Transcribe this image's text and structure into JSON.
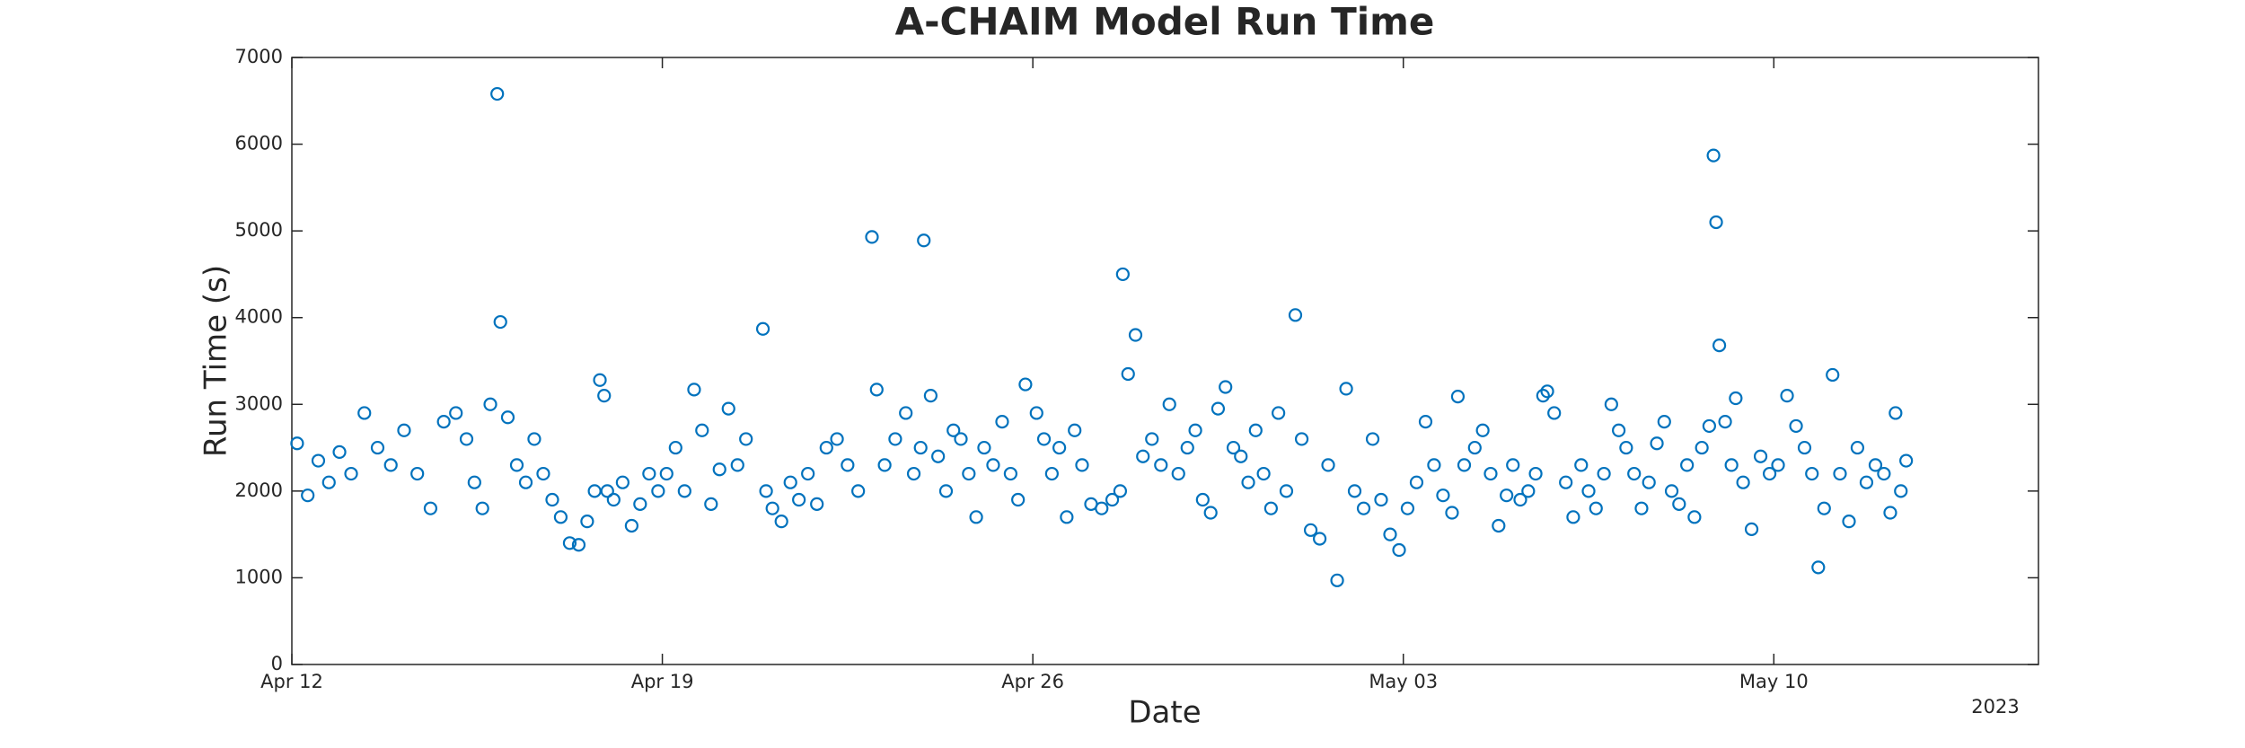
{
  "chart_data": {
    "type": "scatter",
    "title": "A-CHAIM Model Run Time",
    "xlabel": "Date",
    "ylabel": "Run Time (s)",
    "x_secondary_label": "2023",
    "color": "#0072bd",
    "grid": false,
    "xlim": [
      0,
      33
    ],
    "xticks": [
      {
        "value": 0,
        "label": "Apr 12"
      },
      {
        "value": 7,
        "label": "Apr 19"
      },
      {
        "value": 14,
        "label": "Apr 26"
      },
      {
        "value": 21,
        "label": "May 03"
      },
      {
        "value": 28,
        "label": "May 10"
      }
    ],
    "ylim": [
      0,
      7000
    ],
    "yticks": [
      0,
      1000,
      2000,
      3000,
      4000,
      5000,
      6000,
      7000
    ],
    "x": [
      0.1,
      0.3,
      0.5,
      0.7,
      0.9,
      1.12,
      1.37,
      1.62,
      1.87,
      2.12,
      2.37,
      2.62,
      2.87,
      3.1,
      3.3,
      3.45,
      3.6,
      3.75,
      3.88,
      3.94,
      4.08,
      4.25,
      4.42,
      4.58,
      4.75,
      4.92,
      5.08,
      5.25,
      5.42,
      5.58,
      5.72,
      5.82,
      5.9,
      5.96,
      6.08,
      6.25,
      6.42,
      6.58,
      6.75,
      6.92,
      7.08,
      7.25,
      7.42,
      7.6,
      7.75,
      7.92,
      8.08,
      8.25,
      8.42,
      8.58,
      8.9,
      8.96,
      9.08,
      9.25,
      9.42,
      9.58,
      9.75,
      9.92,
      10.1,
      10.3,
      10.5,
      10.7,
      10.96,
      11.05,
      11.2,
      11.4,
      11.6,
      11.75,
      11.88,
      11.94,
      12.07,
      12.21,
      12.36,
      12.5,
      12.64,
      12.79,
      12.93,
      13.08,
      13.25,
      13.42,
      13.58,
      13.72,
      13.86,
      14.07,
      14.21,
      14.36,
      14.5,
      14.64,
      14.79,
      14.93,
      15.1,
      15.3,
      15.5,
      15.65,
      15.7,
      15.8,
      15.94,
      16.08,
      16.25,
      16.42,
      16.58,
      16.75,
      16.92,
      17.07,
      17.21,
      17.36,
      17.5,
      17.64,
      17.79,
      17.93,
      18.07,
      18.21,
      18.36,
      18.5,
      18.64,
      18.79,
      18.96,
      19.08,
      19.25,
      19.42,
      19.58,
      19.75,
      19.92,
      20.08,
      20.25,
      20.42,
      20.58,
      20.75,
      20.92,
      21.08,
      21.25,
      21.42,
      21.58,
      21.75,
      21.92,
      22.03,
      22.15,
      22.35,
      22.5,
      22.65,
      22.8,
      22.95,
      23.07,
      23.21,
      23.36,
      23.5,
      23.64,
      23.72,
      23.85,
      24.07,
      24.21,
      24.36,
      24.5,
      24.64,
      24.79,
      24.93,
      25.07,
      25.21,
      25.36,
      25.5,
      25.64,
      25.79,
      25.93,
      26.07,
      26.21,
      26.36,
      26.5,
      26.64,
      26.78,
      26.86,
      26.91,
      26.97,
      27.08,
      27.2,
      27.28,
      27.42,
      27.58,
      27.75,
      27.92,
      28.08,
      28.25,
      28.42,
      28.58,
      28.72,
      28.84,
      28.95,
      29.11,
      29.25,
      29.42,
      29.58,
      29.75,
      29.92,
      30.08,
      30.2,
      30.3,
      30.4,
      30.5
    ],
    "values": [
      2550,
      1950,
      2350,
      2100,
      2450,
      2200,
      2900,
      2500,
      2300,
      2700,
      2200,
      1800,
      2800,
      2900,
      2600,
      2100,
      1800,
      3000,
      6580,
      3950,
      2850,
      2300,
      2100,
      2600,
      2200,
      1900,
      1700,
      1400,
      1380,
      1650,
      2000,
      3280,
      3100,
      2000,
      1900,
      2100,
      1600,
      1850,
      2200,
      2000,
      2200,
      2500,
      2000,
      3170,
      2700,
      1850,
      2250,
      2950,
      2300,
      2600,
      3870,
      2000,
      1800,
      1650,
      2100,
      1900,
      2200,
      1850,
      2500,
      2600,
      2300,
      2000,
      4930,
      3170,
      2300,
      2600,
      2900,
      2200,
      2500,
      4890,
      3100,
      2400,
      2000,
      2700,
      2600,
      2200,
      1700,
      2500,
      2300,
      2800,
      2200,
      1900,
      3230,
      2900,
      2600,
      2200,
      2500,
      1700,
      2700,
      2300,
      1850,
      1800,
      1900,
      2000,
      4500,
      3350,
      3800,
      2400,
      2600,
      2300,
      3000,
      2200,
      2500,
      2700,
      1900,
      1750,
      2950,
      3200,
      2500,
      2400,
      2100,
      2700,
      2200,
      1800,
      2900,
      2000,
      4030,
      2600,
      1550,
      1450,
      2300,
      970,
      3180,
      2000,
      1800,
      2600,
      1900,
      1500,
      1320,
      1800,
      2100,
      2800,
      2300,
      1950,
      1750,
      3090,
      2300,
      2500,
      2700,
      2200,
      1600,
      1950,
      2300,
      1900,
      2000,
      2200,
      3100,
      3150,
      2900,
      2100,
      1700,
      2300,
      2000,
      1800,
      2200,
      3000,
      2700,
      2500,
      2200,
      1800,
      2100,
      2550,
      2800,
      2000,
      1850,
      2300,
      1700,
      2500,
      2750,
      5870,
      5100,
      3680,
      2800,
      2300,
      3070,
      2100,
      1560,
      2400,
      2200,
      2300,
      3100,
      2750,
      2500,
      2200,
      1120,
      1800,
      3340,
      2200,
      1650,
      2500,
      2100,
      2300,
      2200,
      1750,
      2900,
      2000,
      2350
    ]
  }
}
